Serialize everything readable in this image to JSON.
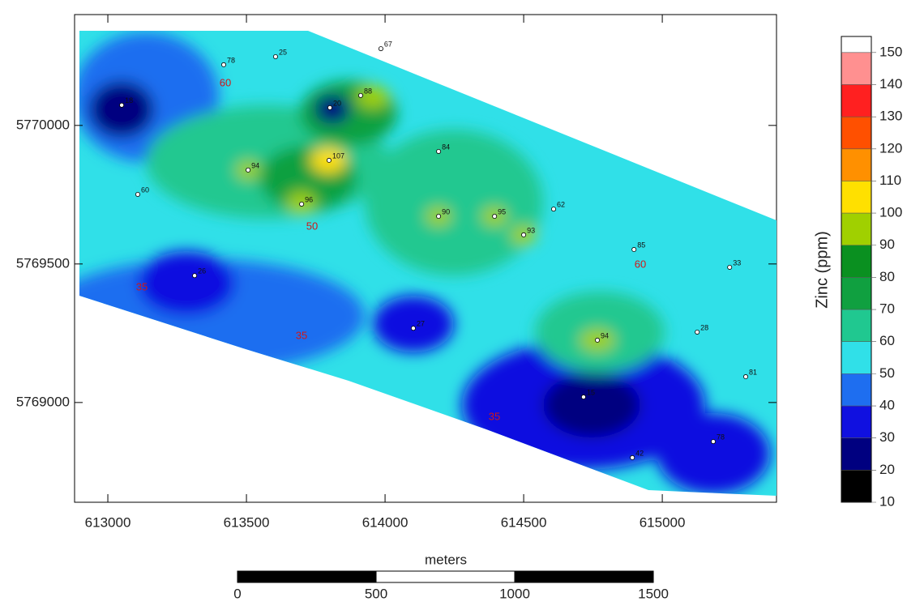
{
  "chart_data": {
    "type": "contour-map",
    "xlim": [
      612880,
      615412
    ],
    "ylim": [
      5768640,
      5770400
    ],
    "xticks": [
      613000,
      613500,
      614000,
      614500,
      615000
    ],
    "yticks": [
      5769000,
      5769500,
      5770000
    ],
    "samples": [
      {
        "x": 613418,
        "y": 5770219,
        "value": 78
      },
      {
        "x": 613605,
        "y": 5770248,
        "value": 25
      },
      {
        "x": 613801,
        "y": 5770064,
        "value": 20
      },
      {
        "x": 613912,
        "y": 5770108,
        "value": 88
      },
      {
        "x": 613798,
        "y": 5769874,
        "value": 107
      },
      {
        "x": 613699,
        "y": 5769716,
        "value": 96
      },
      {
        "x": 613506,
        "y": 5769839,
        "value": 94
      },
      {
        "x": 614193,
        "y": 5769906,
        "value": 84
      },
      {
        "x": 614193,
        "y": 5769672,
        "value": 90
      },
      {
        "x": 614395,
        "y": 5769672,
        "value": 95
      },
      {
        "x": 614500,
        "y": 5769605,
        "value": 93
      },
      {
        "x": 614898,
        "y": 5769552,
        "value": 85
      },
      {
        "x": 614766,
        "y": 5769225,
        "value": 94
      },
      {
        "x": 614102,
        "y": 5769268,
        "value": 27
      },
      {
        "x": 613050,
        "y": 5770073,
        "value": 18
      },
      {
        "x": 613313,
        "y": 5769458,
        "value": 26
      },
      {
        "x": 614716,
        "y": 5769020,
        "value": 15
      },
      {
        "x": 614892,
        "y": 5768801,
        "value": 42
      },
      {
        "x": 615184,
        "y": 5768859,
        "value": 78
      },
      {
        "x": 615301,
        "y": 5769093,
        "value": 81
      },
      {
        "x": 615126,
        "y": 5769254,
        "value": 28
      },
      {
        "x": 615243,
        "y": 5769488,
        "value": 33
      },
      {
        "x": 613108,
        "y": 5769751,
        "value": 60
      },
      {
        "x": 614608,
        "y": 5769698,
        "value": 62
      },
      {
        "x": 613985,
        "y": 5770277,
        "value": 67
      }
    ],
    "contour_labels": [
      60,
      35,
      35,
      50,
      35,
      60
    ],
    "colorbar": {
      "label": "Zinc (ppm)",
      "lim": [
        10,
        155
      ],
      "ticks": [
        10,
        20,
        30,
        40,
        50,
        60,
        70,
        80,
        90,
        100,
        110,
        120,
        130,
        140,
        150
      ],
      "colors": [
        "#000000",
        "#000080",
        "#1010e0",
        "#1e6ef0",
        "#30e0e8",
        "#20c890",
        "#10a040",
        "#0a9020",
        "#a0d000",
        "#ffe000",
        "#ff9000",
        "#ff5000",
        "#ff2020",
        "#ff9090",
        "#ffffff"
      ]
    },
    "scale_bar": {
      "label": "meters",
      "ticks": [
        0,
        500,
        1000,
        1500
      ]
    }
  }
}
